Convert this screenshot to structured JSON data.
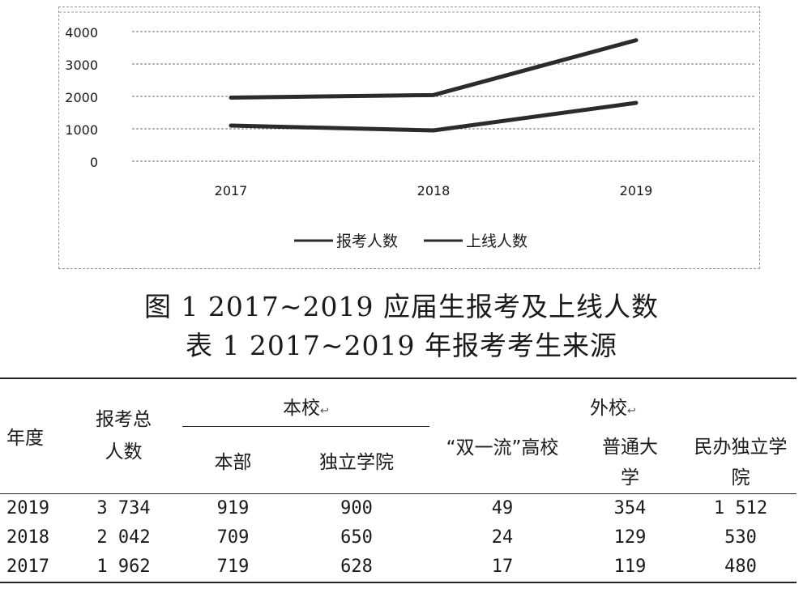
{
  "figure": {
    "caption": "图 1 2017~2019 应届生报考及上线人数",
    "chart_data": {
      "type": "line",
      "x": [
        "2017",
        "2018",
        "2019"
      ],
      "series": [
        {
          "name": "报考人数",
          "values": [
            1962,
            2042,
            3734
          ]
        },
        {
          "name": "上线人数",
          "values": [
            1100,
            950,
            1800
          ]
        }
      ],
      "ylim": [
        0,
        4000
      ],
      "yticks": [
        "0",
        "1000",
        "2000",
        "3000",
        "4000"
      ],
      "grid": true,
      "legend": "bottom",
      "line_color": "#2b2b2b",
      "grid_color": "#8c8c8c"
    }
  },
  "table": {
    "caption": "表 1  2017~2019 年报考考生来源",
    "headers": {
      "year": "年度",
      "total_line1": "报考总",
      "total_line2": "人数",
      "home": "本校",
      "away": "外校",
      "mark": "↩",
      "home_main": "本部",
      "home_independent": "独立学院",
      "away_double": "“双一流”高校",
      "away_regular_1": "普通大",
      "away_regular_2": "学",
      "away_private_1": "民办独立学",
      "away_private_2": "院"
    },
    "rows": [
      {
        "year": "2019",
        "total": "3 734",
        "home_main": "919",
        "home_independent": "900",
        "away_double": "49",
        "away_regular": "354",
        "away_private": "1 512"
      },
      {
        "year": "2018",
        "total": "2 042",
        "home_main": "709",
        "home_independent": "650",
        "away_double": "24",
        "away_regular": "129",
        "away_private": "530"
      },
      {
        "year": "2017",
        "total": "1 962",
        "home_main": "719",
        "home_independent": "628",
        "away_double": "17",
        "away_regular": "119",
        "away_private": "480"
      }
    ]
  }
}
